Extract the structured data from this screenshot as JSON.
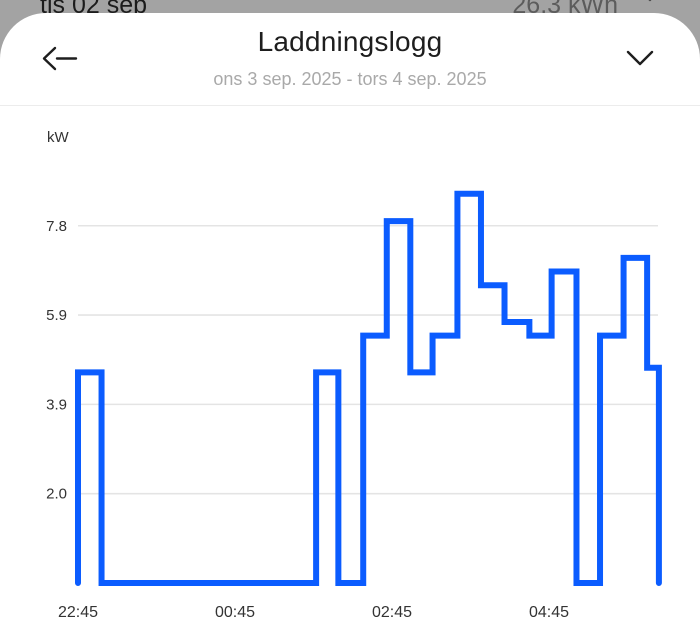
{
  "background_row": {
    "date": "tis 02 sep",
    "energy": "26.3 kWh",
    "chevron_icon": "chevron-right-icon"
  },
  "header": {
    "back_icon": "back-arrow-icon",
    "title": "Laddningslogg",
    "subtitle": "ons 3 sep. 2025 - tors 4 sep. 2025",
    "collapse_icon": "chevron-down-icon"
  },
  "colors": {
    "line": "#0b5cff",
    "grid": "#e4e4e4",
    "axis_text": "#333333",
    "subtitle": "#a9a9a9",
    "backdrop": "#a3a3a3"
  },
  "chart_data": {
    "type": "line",
    "style": "step",
    "title": "Laddningslogg",
    "xlabel": "",
    "ylabel": "kW",
    "ylim": [
      0,
      8.5
    ],
    "grid": true,
    "legend": null,
    "yticks": [
      {
        "value": 1.95,
        "label": "2.0"
      },
      {
        "value": 3.9,
        "label": "3.9"
      },
      {
        "value": 5.85,
        "label": "5.9"
      },
      {
        "value": 7.8,
        "label": "7.8"
      }
    ],
    "xticks": [
      "22:45",
      "00:45",
      "02:45",
      "04:45"
    ],
    "x_start": "22:45",
    "x_end": "06:09",
    "steps": [
      {
        "start": "22:45",
        "kw": 4.6
      },
      {
        "start": "23:03",
        "kw": 0
      },
      {
        "start": "01:47",
        "kw": 4.6
      },
      {
        "start": "02:04",
        "kw": 0
      },
      {
        "start": "02:23",
        "kw": 5.4
      },
      {
        "start": "02:41",
        "kw": 7.9
      },
      {
        "start": "02:59",
        "kw": 4.6
      },
      {
        "start": "03:16",
        "kw": 5.4
      },
      {
        "start": "03:35",
        "kw": 8.5
      },
      {
        "start": "03:53",
        "kw": 6.5
      },
      {
        "start": "04:11",
        "kw": 5.7
      },
      {
        "start": "04:30",
        "kw": 5.4
      },
      {
        "start": "04:47",
        "kw": 6.8
      },
      {
        "start": "05:06",
        "kw": 0
      },
      {
        "start": "05:24",
        "kw": 5.4
      },
      {
        "start": "05:42",
        "kw": 7.1
      },
      {
        "start": "06:00",
        "kw": 4.7
      }
    ]
  }
}
